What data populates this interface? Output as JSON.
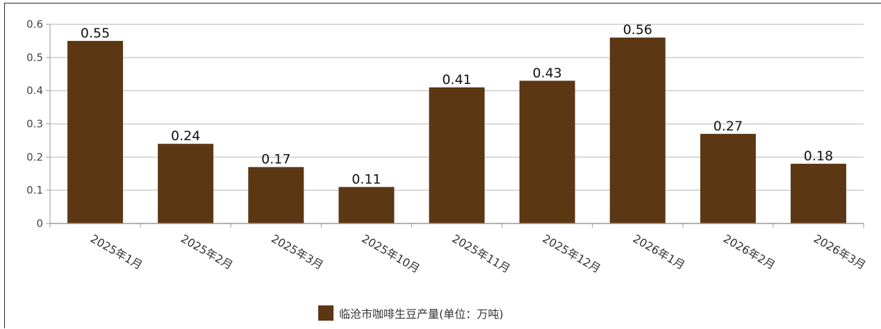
{
  "colors": {
    "bar": "#5c3714",
    "grid": "#cccccc",
    "axis": "#999999"
  },
  "chart_data": {
    "type": "bar",
    "categories": [
      "2025年1月",
      "2025年2月",
      "2025年3月",
      "2025年10月",
      "2025年11月",
      "2025年12月",
      "2026年1月",
      "2026年2月",
      "2026年3月"
    ],
    "series": [
      {
        "name": "临沧市咖啡生豆产量(单位：万吨)",
        "values": [
          0.55,
          0.24,
          0.17,
          0.11,
          0.41,
          0.43,
          0.56,
          0.27,
          0.18
        ]
      }
    ],
    "yticks": [
      "0",
      "0.1",
      "0.2",
      "0.3",
      "0.4",
      "0.5",
      "0.6"
    ],
    "ylim": [
      0,
      0.6
    ],
    "grid": true,
    "legend_position": "bottom-center"
  }
}
